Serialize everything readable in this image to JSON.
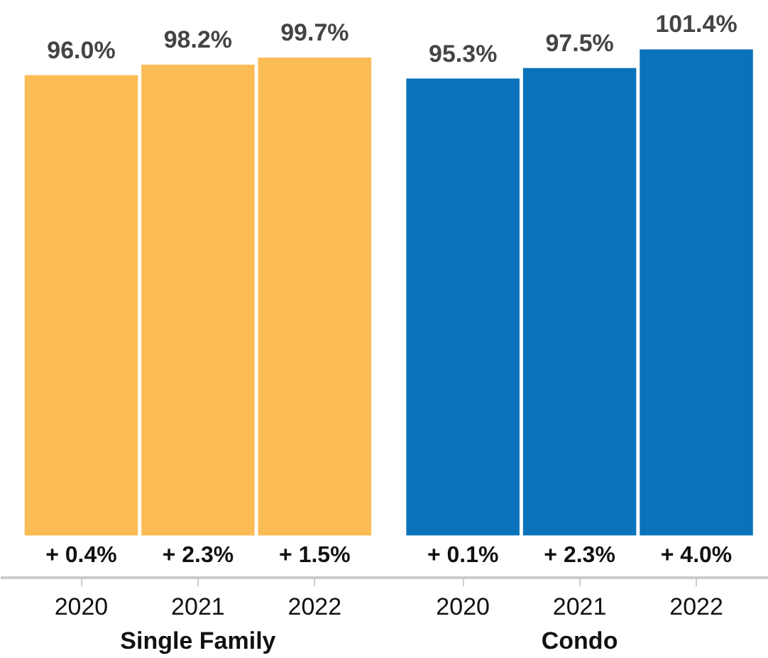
{
  "chart_data": {
    "type": "bar",
    "categories": [
      "2020",
      "2021",
      "2022",
      "2020",
      "2021",
      "2022"
    ],
    "series": [
      {
        "color": "#fbbc55",
        "values": [
          96.0,
          98.2,
          99.7,
          null,
          null,
          null
        ],
        "value_labels": [
          "96.0%",
          "98.2%",
          "99.7%",
          null,
          null,
          null
        ]
      },
      {
        "color": "#0a72bb",
        "values": [
          null,
          null,
          null,
          95.3,
          97.5,
          101.4
        ],
        "value_labels": [
          null,
          null,
          null,
          "95.3%",
          "97.5%",
          "101.4%"
        ]
      }
    ],
    "annotations": [
      "+ 0.4%",
      "+ 2.3%",
      "+ 1.5%",
      "+ 0.1%",
      "+ 2.3%",
      "+ 4.0%",
      "Single Family",
      "Condo"
    ]
  }
}
